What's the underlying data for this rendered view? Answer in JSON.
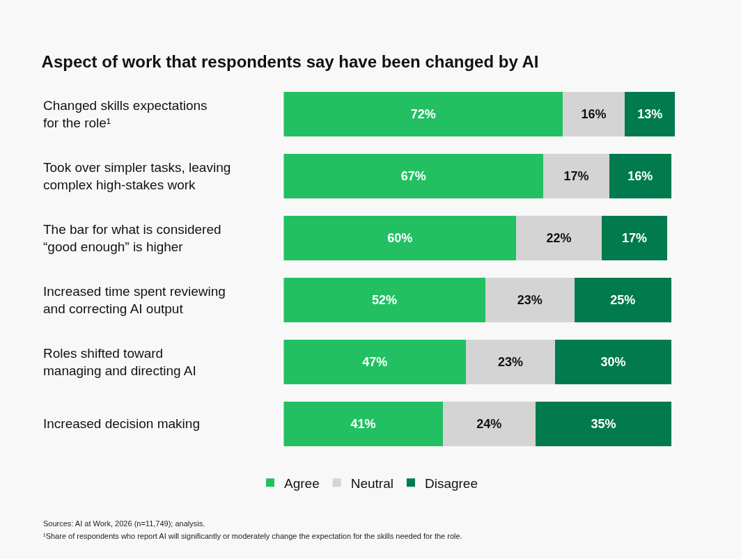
{
  "chart_data": {
    "type": "bar",
    "orientation": "horizontal",
    "stacked": true,
    "legend": "bottom",
    "title": "Aspect of work that respondents say have been changed by AI",
    "categories": [
      "Changed skills expectations\nfor the role¹",
      "Took over simpler tasks, leaving\ncomplex high-stakes work",
      "The bar for what is considered\n“good enough” is higher",
      "Increased time spent reviewing\nand correcting AI output",
      "Roles shifted toward\nmanaging and directing AI",
      "Increased decision making"
    ],
    "series": [
      {
        "name": "Agree",
        "color": "#22c063",
        "values": [
          72,
          67,
          60,
          52,
          47,
          41
        ],
        "value_labels": [
          "72%",
          "67%",
          "60%",
          "52%",
          "47%",
          "41%"
        ]
      },
      {
        "name": "Neutral",
        "color": "#d4d4d4",
        "values": [
          16,
          17,
          22,
          23,
          23,
          24
        ],
        "value_labels": [
          "16%",
          "17%",
          "22%",
          "23%",
          "23%",
          "24%"
        ]
      },
      {
        "name": "Disagree",
        "color": "#017a4d",
        "values": [
          13,
          16,
          17,
          25,
          30,
          35
        ],
        "value_labels": [
          "13%",
          "16%",
          "17%",
          "25%",
          "30%",
          "35%"
        ]
      }
    ],
    "annotations": [
      "Sources: AI at Work, 2026 (n=11,749); analysis.",
      "¹Share of respondents who report AI will significantly or moderately change the expectation for the skills needed for the role."
    ]
  }
}
